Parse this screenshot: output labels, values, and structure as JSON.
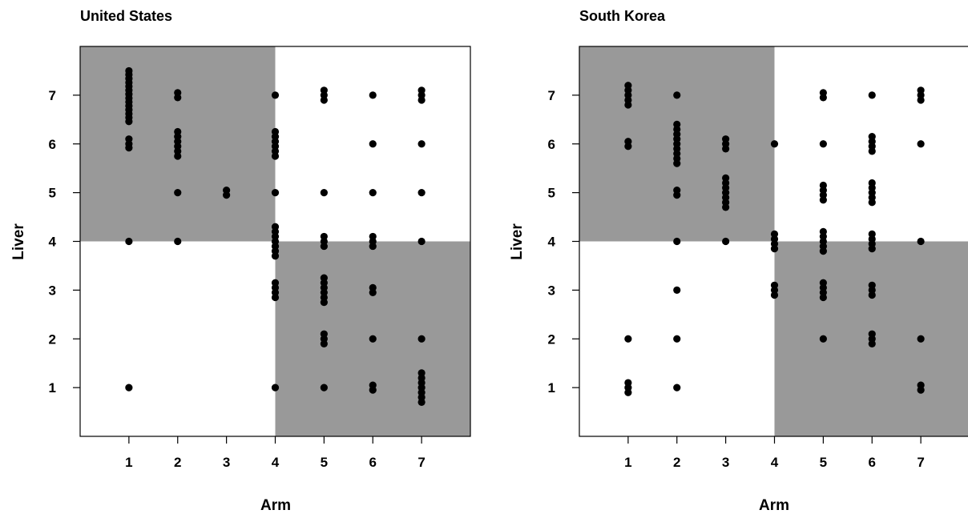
{
  "chart_data": [
    {
      "type": "scatter",
      "title": "United States",
      "xlabel": "Arm",
      "ylabel": "Liver",
      "xlim": [
        0,
        8
      ],
      "ylim": [
        0,
        8
      ],
      "xticks": [
        "1",
        "2",
        "3",
        "4",
        "5",
        "6",
        "7"
      ],
      "yticks": [
        "1",
        "2",
        "3",
        "4",
        "5",
        "6",
        "7"
      ],
      "shaded_regions": [
        {
          "x": [
            0,
            4
          ],
          "y": [
            4,
            8
          ],
          "color": "#999999"
        },
        {
          "x": [
            4,
            8
          ],
          "y": [
            0,
            4
          ],
          "color": "#999999"
        }
      ],
      "point_color": "#000000",
      "points": [
        [
          1,
          7.5
        ],
        [
          1,
          7.42
        ],
        [
          1,
          7.34
        ],
        [
          1,
          7.26
        ],
        [
          1,
          7.18
        ],
        [
          1,
          7.1
        ],
        [
          1,
          7.02
        ],
        [
          1,
          6.94
        ],
        [
          1,
          6.86
        ],
        [
          1,
          6.78
        ],
        [
          1,
          6.7
        ],
        [
          1,
          6.62
        ],
        [
          1,
          6.54
        ],
        [
          1,
          6.46
        ],
        [
          1,
          6.1
        ],
        [
          1,
          6.0
        ],
        [
          1,
          5.92
        ],
        [
          1,
          4
        ],
        [
          1,
          1
        ],
        [
          2,
          7.05
        ],
        [
          2,
          6.95
        ],
        [
          2,
          6.25
        ],
        [
          2,
          6.15
        ],
        [
          2,
          6.05
        ],
        [
          2,
          5.95
        ],
        [
          2,
          5.85
        ],
        [
          2,
          5.75
        ],
        [
          2,
          5
        ],
        [
          2,
          4
        ],
        [
          3,
          5.05
        ],
        [
          3,
          4.95
        ],
        [
          4,
          7
        ],
        [
          4,
          6.25
        ],
        [
          4,
          6.15
        ],
        [
          4,
          6.05
        ],
        [
          4,
          5.95
        ],
        [
          4,
          5.85
        ],
        [
          4,
          5.75
        ],
        [
          4,
          5
        ],
        [
          4,
          4.3
        ],
        [
          4,
          4.2
        ],
        [
          4,
          4.1
        ],
        [
          4,
          4.0
        ],
        [
          4,
          3.9
        ],
        [
          4,
          3.8
        ],
        [
          4,
          3.7
        ],
        [
          4,
          3.15
        ],
        [
          4,
          3.05
        ],
        [
          4,
          2.95
        ],
        [
          4,
          2.85
        ],
        [
          4,
          1
        ],
        [
          5,
          7.1
        ],
        [
          5,
          7.0
        ],
        [
          5,
          6.9
        ],
        [
          5,
          5
        ],
        [
          5,
          4.1
        ],
        [
          5,
          4.0
        ],
        [
          5,
          3.9
        ],
        [
          5,
          3.25
        ],
        [
          5,
          3.15
        ],
        [
          5,
          3.05
        ],
        [
          5,
          2.95
        ],
        [
          5,
          2.85
        ],
        [
          5,
          2.75
        ],
        [
          5,
          2.1
        ],
        [
          5,
          2.0
        ],
        [
          5,
          1.9
        ],
        [
          5,
          1
        ],
        [
          6,
          7
        ],
        [
          6,
          6
        ],
        [
          6,
          5
        ],
        [
          6,
          4.1
        ],
        [
          6,
          4.0
        ],
        [
          6,
          3.9
        ],
        [
          6,
          3.05
        ],
        [
          6,
          2.95
        ],
        [
          6,
          2
        ],
        [
          6,
          1.05
        ],
        [
          6,
          0.95
        ],
        [
          7,
          7.1
        ],
        [
          7,
          7.0
        ],
        [
          7,
          6.9
        ],
        [
          7,
          6
        ],
        [
          7,
          5
        ],
        [
          7,
          4
        ],
        [
          7,
          2
        ],
        [
          7,
          1.3
        ],
        [
          7,
          1.2
        ],
        [
          7,
          1.1
        ],
        [
          7,
          1.0
        ],
        [
          7,
          0.9
        ],
        [
          7,
          0.8
        ],
        [
          7,
          0.7
        ]
      ]
    },
    {
      "type": "scatter",
      "title": "South Korea",
      "xlabel": "Arm",
      "ylabel": "Liver",
      "xlim": [
        0,
        8
      ],
      "ylim": [
        0,
        8
      ],
      "xticks": [
        "1",
        "2",
        "3",
        "4",
        "5",
        "6",
        "7"
      ],
      "yticks": [
        "1",
        "2",
        "3",
        "4",
        "5",
        "6",
        "7"
      ],
      "shaded_regions": [
        {
          "x": [
            0,
            4
          ],
          "y": [
            4,
            8
          ],
          "color": "#999999"
        },
        {
          "x": [
            4,
            8
          ],
          "y": [
            0,
            4
          ],
          "color": "#999999"
        }
      ],
      "point_color": "#000000",
      "points": [
        [
          1,
          7.2
        ],
        [
          1,
          7.1
        ],
        [
          1,
          7.0
        ],
        [
          1,
          6.9
        ],
        [
          1,
          6.8
        ],
        [
          1,
          6.05
        ],
        [
          1,
          5.95
        ],
        [
          1,
          2
        ],
        [
          1,
          1.1
        ],
        [
          1,
          1.0
        ],
        [
          1,
          0.9
        ],
        [
          2,
          7
        ],
        [
          2,
          6.4
        ],
        [
          2,
          6.3
        ],
        [
          2,
          6.2
        ],
        [
          2,
          6.1
        ],
        [
          2,
          6.0
        ],
        [
          2,
          5.9
        ],
        [
          2,
          5.8
        ],
        [
          2,
          5.7
        ],
        [
          2,
          5.6
        ],
        [
          2,
          5.05
        ],
        [
          2,
          4.95
        ],
        [
          2,
          4
        ],
        [
          2,
          3
        ],
        [
          2,
          2
        ],
        [
          2,
          1
        ],
        [
          3,
          6.1
        ],
        [
          3,
          6.0
        ],
        [
          3,
          5.9
        ],
        [
          3,
          5.3
        ],
        [
          3,
          5.2
        ],
        [
          3,
          5.1
        ],
        [
          3,
          5.0
        ],
        [
          3,
          4.9
        ],
        [
          3,
          4.8
        ],
        [
          3,
          4.7
        ],
        [
          3,
          4
        ],
        [
          4,
          6
        ],
        [
          4,
          4.15
        ],
        [
          4,
          4.05
        ],
        [
          4,
          3.95
        ],
        [
          4,
          3.85
        ],
        [
          4,
          3.1
        ],
        [
          4,
          3.0
        ],
        [
          4,
          2.9
        ],
        [
          5,
          7.05
        ],
        [
          5,
          6.95
        ],
        [
          5,
          6
        ],
        [
          5,
          5.15
        ],
        [
          5,
          5.05
        ],
        [
          5,
          4.95
        ],
        [
          5,
          4.85
        ],
        [
          5,
          4.2
        ],
        [
          5,
          4.1
        ],
        [
          5,
          4.0
        ],
        [
          5,
          3.9
        ],
        [
          5,
          3.8
        ],
        [
          5,
          3.15
        ],
        [
          5,
          3.05
        ],
        [
          5,
          2.95
        ],
        [
          5,
          2.85
        ],
        [
          5,
          2
        ],
        [
          6,
          7
        ],
        [
          6,
          6.15
        ],
        [
          6,
          6.05
        ],
        [
          6,
          5.95
        ],
        [
          6,
          5.85
        ],
        [
          6,
          5.2
        ],
        [
          6,
          5.1
        ],
        [
          6,
          5.0
        ],
        [
          6,
          4.9
        ],
        [
          6,
          4.8
        ],
        [
          6,
          4.15
        ],
        [
          6,
          4.05
        ],
        [
          6,
          3.95
        ],
        [
          6,
          3.85
        ],
        [
          6,
          3.1
        ],
        [
          6,
          3.0
        ],
        [
          6,
          2.9
        ],
        [
          6,
          2.1
        ],
        [
          6,
          2.0
        ],
        [
          6,
          1.9
        ],
        [
          7,
          7.1
        ],
        [
          7,
          7.0
        ],
        [
          7,
          6.9
        ],
        [
          7,
          6
        ],
        [
          7,
          4
        ],
        [
          7,
          2
        ],
        [
          7,
          1.05
        ],
        [
          7,
          0.95
        ]
      ]
    }
  ]
}
